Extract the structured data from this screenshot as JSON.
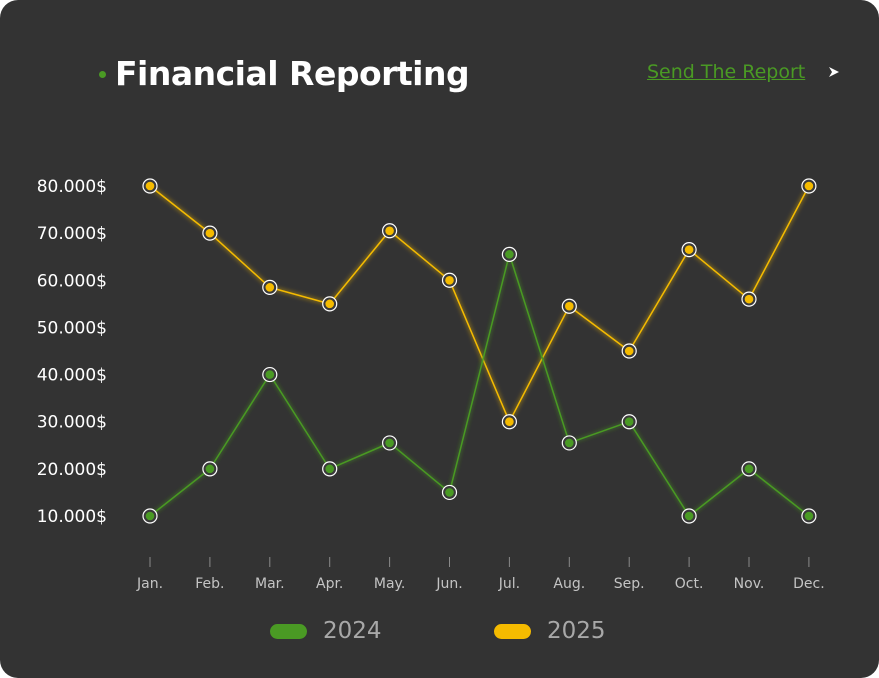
{
  "header": {
    "title": "Financial Reporting",
    "send_label": "Send The Report",
    "send_icon": "arrow-right-icon"
  },
  "colors": {
    "background": "#333333",
    "accent_green": "#4a9a24",
    "accent_yellow": "#f5bb00"
  },
  "chart_data": {
    "type": "line",
    "title": "Financial Reporting",
    "xlabel": "",
    "ylabel": "",
    "categories": [
      "Jan.",
      "Feb.",
      "Mar.",
      "Apr.",
      "May.",
      "Jun.",
      "Jul.",
      "Aug.",
      "Sep.",
      "Oct.",
      "Nov.",
      "Dec."
    ],
    "y_ticks": [
      {
        "value": 80000,
        "label": "80.000$"
      },
      {
        "value": 70000,
        "label": "70.000$"
      },
      {
        "value": 60000,
        "label": "60.000$"
      },
      {
        "value": 50000,
        "label": "50.000$"
      },
      {
        "value": 40000,
        "label": "40.000$"
      },
      {
        "value": 30000,
        "label": "30.000$"
      },
      {
        "value": 20000,
        "label": "20.000$"
      },
      {
        "value": 10000,
        "label": "10.000$"
      }
    ],
    "ylim": [
      10000,
      80000
    ],
    "grid": false,
    "legend_position": "bottom",
    "series": [
      {
        "name": "2024",
        "color": "#4a9a24",
        "values": [
          10000,
          20000,
          40000,
          20000,
          25500,
          15000,
          65500,
          25500,
          30000,
          10000,
          20000,
          10000
        ]
      },
      {
        "name": "2025",
        "color": "#f5bb00",
        "values": [
          80000,
          70000,
          58500,
          55000,
          70500,
          60000,
          30000,
          54500,
          45000,
          66500,
          56000,
          80000
        ]
      }
    ]
  }
}
